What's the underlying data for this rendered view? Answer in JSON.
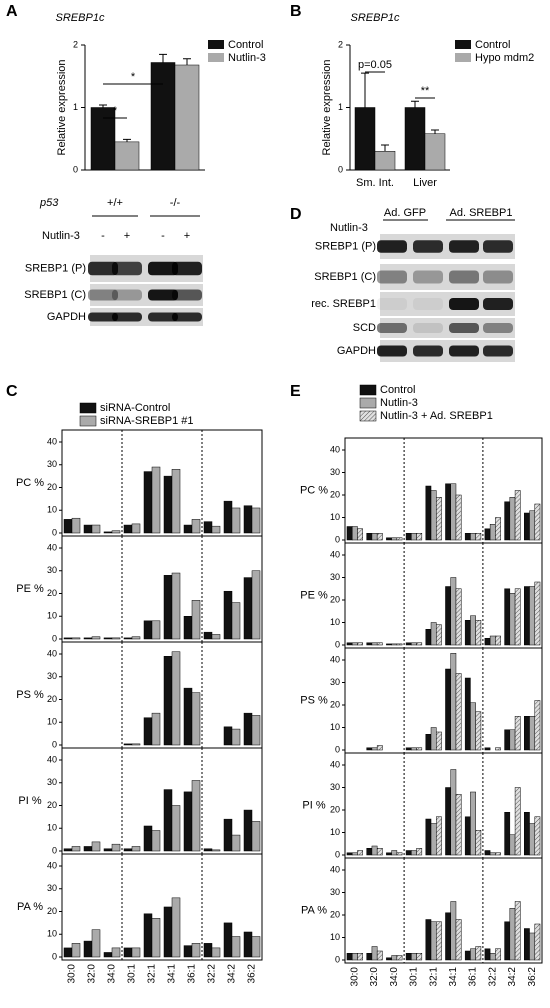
{
  "panel_labels": [
    "A",
    "B",
    "C",
    "D",
    "E"
  ],
  "blot_a": {
    "p53_label": "p53",
    "nutlin_label": "Nutlin-3",
    "nutlin_states": [
      "-",
      "+",
      "-",
      "+"
    ],
    "rows": [
      "SREBP1 (P)",
      "SREBP1 (C)",
      "GAPDH"
    ]
  },
  "blot_d": {
    "groups": [
      "Ad. GFP",
      "Ad. SREBP1"
    ],
    "nutlin_label": "Nutlin-3",
    "nutlin_states": [
      "-",
      "+",
      "-",
      "+"
    ],
    "rows": [
      "SREBP1 (P)",
      "SREBP1 (C)",
      "rec. SREBP1",
      "SCD",
      "GAPDH"
    ]
  },
  "chart_data": [
    {
      "type": "bar",
      "title": "SREBP1c",
      "y_label": "Relative expression",
      "categories": [
        "+/+",
        "-/-"
      ],
      "series": [
        {
          "name": "Control",
          "color": "#111111",
          "values": [
            1.0,
            1.72
          ],
          "errors": [
            0.04,
            0.13
          ]
        },
        {
          "name": "Nutlin-3",
          "color": "#aaaaaa",
          "values": [
            0.45,
            1.68
          ],
          "errors": [
            0.04,
            0.1
          ]
        }
      ],
      "ylim": [
        0,
        2
      ],
      "yticks": [
        0,
        1,
        2
      ],
      "annotations": [
        "*",
        "*"
      ]
    },
    {
      "type": "bar",
      "title": "SREBP1c",
      "y_label": "Relative expression",
      "categories": [
        "Sm. Int.",
        "Liver"
      ],
      "series": [
        {
          "name": "Control",
          "color": "#111111",
          "values": [
            1.0,
            1.0
          ],
          "errors": [
            0.55,
            0.1
          ]
        },
        {
          "name": "Hypo mdm2",
          "color": "#aaaaaa",
          "values": [
            0.3,
            0.58
          ],
          "errors": [
            0.1,
            0.06
          ]
        }
      ],
      "ylim": [
        0,
        2
      ],
      "yticks": [
        0,
        1,
        2
      ],
      "annotations": [
        "p=0.05",
        "**"
      ]
    },
    {
      "type": "bar-panels",
      "categories": [
        "30:0",
        "32:0",
        "34:0",
        "30:1",
        "32:1",
        "34:1",
        "36:1",
        "32:2",
        "34:2",
        "36:2"
      ],
      "series": [
        {
          "name": "siRNA-Control",
          "color": "#111111"
        },
        {
          "name": "siRNA-SREBP1 #1",
          "color": "#aaaaaa"
        }
      ],
      "ylim": [
        0,
        40
      ],
      "yticks": [
        0,
        10,
        20,
        30,
        40
      ],
      "panels": [
        {
          "y_label": "PC %",
          "values": [
            [
              6,
              3.5,
              0.5,
              3.5,
              27,
              25,
              3.5,
              5,
              14,
              12
            ],
            [
              6.5,
              3.5,
              1,
              4,
              29,
              28,
              6,
              3,
              11,
              11
            ]
          ]
        },
        {
          "y_label": "PE %",
          "values": [
            [
              0.5,
              0.5,
              0.5,
              0.5,
              8,
              28,
              10,
              3,
              21,
              27
            ],
            [
              0.5,
              1,
              0.5,
              1,
              8,
              29,
              17,
              2,
              16,
              30
            ]
          ]
        },
        {
          "y_label": "PS %",
          "values": [
            [
              0,
              0,
              0,
              0.5,
              12,
              39,
              25,
              0,
              8,
              14
            ],
            [
              0,
              0,
              0,
              0.5,
              14,
              41,
              23,
              0,
              7,
              13
            ]
          ]
        },
        {
          "y_label": "PI %",
          "values": [
            [
              1,
              2,
              1,
              1,
              11,
              27,
              26,
              1,
              14,
              18
            ],
            [
              2,
              4,
              3,
              2,
              9,
              20,
              31,
              0.5,
              7,
              13
            ]
          ]
        },
        {
          "y_label": "PA %",
          "values": [
            [
              4,
              7,
              2,
              4,
              19,
              22,
              5,
              6,
              15,
              11
            ],
            [
              6,
              12,
              4,
              4,
              17,
              26,
              6,
              4,
              9,
              9
            ]
          ]
        }
      ]
    },
    {
      "type": "bar-panels",
      "categories": [
        "30:0",
        "32:0",
        "34:0",
        "30:1",
        "32:1",
        "34:1",
        "36:1",
        "32:2",
        "34:2",
        "36:2"
      ],
      "series": [
        {
          "name": "Control",
          "color": "#111111"
        },
        {
          "name": "Nutlin-3",
          "color": "#aaaaaa"
        },
        {
          "name": "Nutlin-3 + Ad. SREBP1",
          "color": "#e0e0e0",
          "hatch": true
        }
      ],
      "ylim": [
        0,
        40
      ],
      "yticks": [
        0,
        10,
        20,
        30,
        40
      ],
      "panels": [
        {
          "y_label": "PC %",
          "values": [
            [
              6,
              3,
              1,
              3,
              24,
              25,
              3,
              5,
              17,
              12
            ],
            [
              6,
              3,
              1,
              3,
              22,
              25,
              3,
              7,
              19,
              13
            ],
            [
              5,
              3,
              1,
              3,
              19,
              20,
              3,
              10,
              22,
              16
            ]
          ]
        },
        {
          "y_label": "PE %",
          "values": [
            [
              1,
              1,
              0.5,
              1,
              7,
              26,
              11,
              3,
              25,
              26
            ],
            [
              1,
              1,
              0.5,
              1,
              10,
              30,
              13,
              4,
              23,
              26
            ],
            [
              1,
              1,
              0.5,
              1,
              9,
              25,
              11,
              4,
              25,
              28
            ]
          ]
        },
        {
          "y_label": "PS %",
          "values": [
            [
              0,
              1,
              0,
              1,
              7,
              36,
              32,
              1,
              9,
              15
            ],
            [
              0,
              1,
              0,
              1,
              10,
              43,
              21,
              0,
              9,
              15
            ],
            [
              0,
              2,
              0,
              1,
              8,
              34,
              17,
              1,
              15,
              22
            ]
          ]
        },
        {
          "y_label": "PI %",
          "values": [
            [
              1,
              3,
              1,
              2,
              16,
              30,
              17,
              2,
              19,
              19
            ],
            [
              1,
              4,
              2,
              2,
              14,
              38,
              28,
              1,
              9,
              14
            ],
            [
              2,
              3,
              1,
              3,
              17,
              27,
              11,
              1,
              30,
              17
            ]
          ]
        },
        {
          "y_label": "PA %",
          "values": [
            [
              3,
              3,
              1,
              3,
              18,
              21,
              4,
              5,
              17,
              14
            ],
            [
              3,
              6,
              2,
              3,
              17,
              26,
              5,
              3,
              23,
              12
            ],
            [
              3,
              4,
              2,
              3,
              17,
              18,
              6,
              5,
              26,
              16
            ]
          ]
        }
      ]
    }
  ]
}
